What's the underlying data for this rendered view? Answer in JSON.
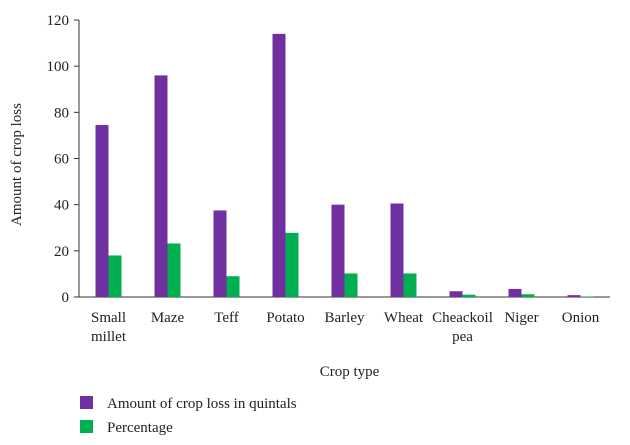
{
  "chart_data": {
    "type": "bar",
    "categories": [
      "Small millet",
      "Maze",
      "Teff",
      "Potato",
      "Barley",
      "Wheat",
      "Cheackoil pea",
      "Niger",
      "Onion"
    ],
    "category_lines": [
      [
        "Small",
        "millet"
      ],
      [
        "Maze"
      ],
      [
        "Teff"
      ],
      [
        "Potato"
      ],
      [
        "Barley"
      ],
      [
        "Wheat"
      ],
      [
        "Cheackoil",
        "pea"
      ],
      [
        "Niger"
      ],
      [
        "Onion"
      ]
    ],
    "series": [
      {
        "name": "Amount of crop loss in quintals",
        "color": "#7030a0",
        "values": [
          74.5,
          96,
          37.5,
          114,
          40,
          40.5,
          2.5,
          3.5,
          0.8
        ]
      },
      {
        "name": "Percentage",
        "color": "#00b050",
        "values": [
          18,
          23.2,
          9,
          27.8,
          10.2,
          10.2,
          1,
          1.2,
          0.2
        ]
      }
    ],
    "xlabel": "Crop type",
    "ylabel": "Amount of crop loss",
    "ylim": [
      0,
      120
    ],
    "yticks": [
      0,
      20,
      40,
      60,
      80,
      100,
      120
    ],
    "grid": false,
    "legend_position": "bottom-left"
  }
}
